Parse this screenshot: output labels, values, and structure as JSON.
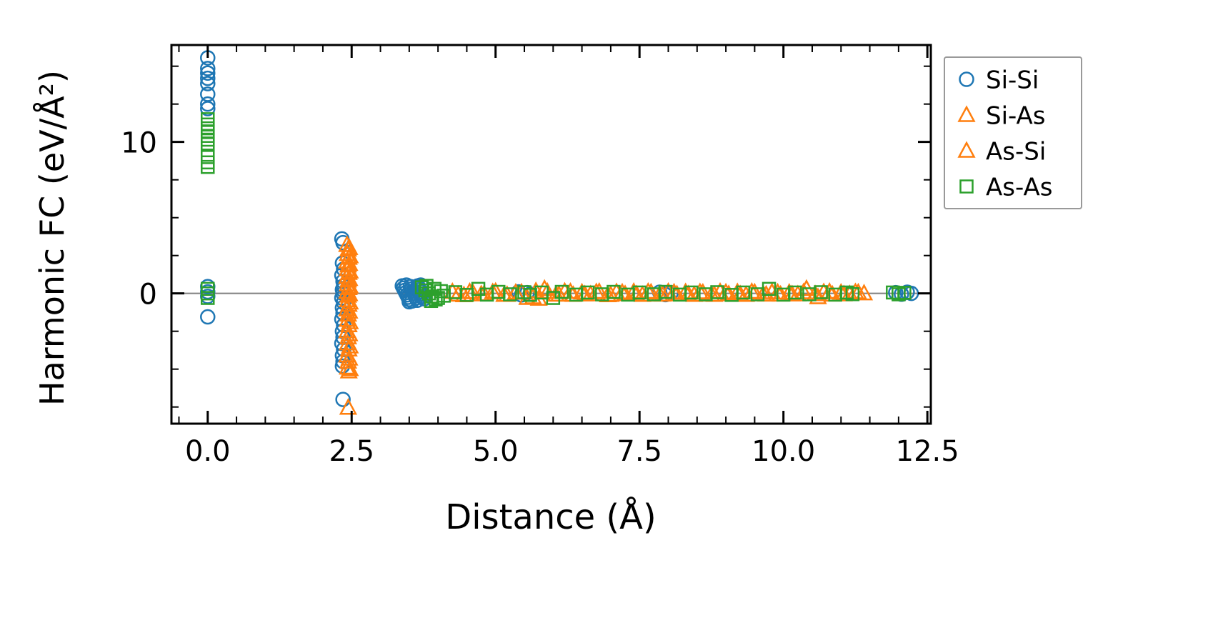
{
  "figure": {
    "background": "#ffffff"
  },
  "chart_data": {
    "type": "scatter",
    "title": "",
    "xlabel": "Distance (Å)",
    "ylabel": "Harmonic FC (eV/Å²)",
    "xlim": [
      -0.63,
      12.56
    ],
    "ylim": [
      -8.6,
      16.4
    ],
    "grid": false,
    "x_ticks": {
      "values": [
        0.0,
        2.5,
        5.0,
        7.5,
        10.0,
        12.5
      ],
      "labels": [
        "0.0",
        "2.5",
        "5.0",
        "7.5",
        "10.0",
        "12.5"
      ],
      "minor_step": 0.5
    },
    "y_ticks": {
      "values": [
        0,
        10
      ],
      "labels": [
        "0",
        "10"
      ],
      "minor_step": 2.5
    },
    "zero_line": {
      "y": 0,
      "color": "#808080"
    },
    "legend": {
      "position": "outside-upper-right",
      "border_color": "#999999"
    },
    "series": [
      {
        "name": "Si-Si",
        "marker": "circle",
        "color": "#1f77b4",
        "points": [
          [
            0,
            15.55
          ],
          [
            0,
            14.85
          ],
          [
            0,
            14.55
          ],
          [
            0,
            14.2
          ],
          [
            0,
            13.85
          ],
          [
            0,
            13.15
          ],
          [
            0,
            12.5
          ],
          [
            0,
            12.2
          ],
          [
            0,
            0.45
          ],
          [
            0,
            0.1
          ],
          [
            0,
            -0.2
          ],
          [
            0,
            -1.55
          ],
          [
            2.33,
            3.6
          ],
          [
            2.35,
            3.35
          ],
          [
            2.34,
            2.0
          ],
          [
            2.36,
            1.6
          ],
          [
            2.33,
            1.2
          ],
          [
            2.35,
            0.8
          ],
          [
            2.36,
            0.5
          ],
          [
            2.34,
            0.25
          ],
          [
            2.35,
            0.0
          ],
          [
            2.33,
            -0.3
          ],
          [
            2.36,
            -0.6
          ],
          [
            2.34,
            -0.95
          ],
          [
            2.35,
            -1.3
          ],
          [
            2.33,
            -1.7
          ],
          [
            2.36,
            -2.1
          ],
          [
            2.34,
            -2.5
          ],
          [
            2.35,
            -2.9
          ],
          [
            2.33,
            -3.3
          ],
          [
            2.36,
            -3.7
          ],
          [
            2.34,
            -4.1
          ],
          [
            2.35,
            -4.5
          ],
          [
            2.34,
            -4.8
          ],
          [
            2.35,
            -7.0
          ],
          [
            3.38,
            0.5
          ],
          [
            3.4,
            0.35
          ],
          [
            3.42,
            0.2
          ],
          [
            3.44,
            0.05
          ],
          [
            3.46,
            -0.1
          ],
          [
            3.48,
            -0.25
          ],
          [
            3.5,
            -0.4
          ],
          [
            3.52,
            0.45
          ],
          [
            3.54,
            0.3
          ],
          [
            3.56,
            0.15
          ],
          [
            3.58,
            0.0
          ],
          [
            3.6,
            -0.15
          ],
          [
            3.62,
            -0.3
          ],
          [
            3.64,
            -0.45
          ],
          [
            3.66,
            0.4
          ],
          [
            3.68,
            0.25
          ],
          [
            3.7,
            0.1
          ],
          [
            3.72,
            -0.05
          ],
          [
            3.74,
            -0.2
          ],
          [
            3.76,
            -0.35
          ],
          [
            3.45,
            0.55
          ],
          [
            3.55,
            -0.5
          ],
          [
            3.65,
            0.5
          ],
          [
            3.5,
            -0.55
          ],
          [
            3.7,
            0.55
          ],
          [
            5.4,
            0.1
          ],
          [
            5.45,
            -0.1
          ],
          [
            5.55,
            0.05
          ],
          [
            5.6,
            -0.05
          ],
          [
            7.85,
            0.08
          ],
          [
            7.95,
            -0.08
          ],
          [
            8.05,
            0.05
          ],
          [
            11.95,
            0.05
          ],
          [
            12.05,
            -0.05
          ],
          [
            12.15,
            0.08
          ],
          [
            12.22,
            0.0
          ]
        ]
      },
      {
        "name": "Si-As",
        "marker": "triangle",
        "color": "#ff7f0e",
        "points": [
          [
            2.42,
            3.2
          ],
          [
            2.44,
            2.9
          ],
          [
            2.43,
            2.6
          ],
          [
            2.45,
            2.35
          ],
          [
            2.42,
            2.1
          ],
          [
            2.44,
            1.85
          ],
          [
            2.43,
            1.6
          ],
          [
            2.45,
            1.35
          ],
          [
            2.42,
            1.1
          ],
          [
            2.44,
            0.85
          ],
          [
            2.43,
            0.6
          ],
          [
            2.45,
            0.35
          ],
          [
            2.42,
            0.1
          ],
          [
            2.44,
            -0.15
          ],
          [
            2.43,
            -0.45
          ],
          [
            2.45,
            -0.75
          ],
          [
            2.42,
            -1.05
          ],
          [
            2.44,
            -1.4
          ],
          [
            2.43,
            -1.75
          ],
          [
            2.45,
            -2.1
          ],
          [
            2.42,
            -2.5
          ],
          [
            2.44,
            -2.9
          ],
          [
            2.43,
            -3.3
          ],
          [
            2.45,
            -3.7
          ],
          [
            2.42,
            -4.1
          ],
          [
            2.44,
            -4.5
          ],
          [
            2.43,
            -4.9
          ],
          [
            2.45,
            -5.15
          ],
          [
            2.44,
            -7.55
          ],
          [
            4.25,
            0.1
          ],
          [
            4.45,
            -0.12
          ],
          [
            4.6,
            0.08
          ],
          [
            4.8,
            -0.05
          ],
          [
            5.0,
            0.12
          ],
          [
            5.15,
            -0.1
          ],
          [
            5.35,
            0.05
          ],
          [
            5.55,
            -0.3
          ],
          [
            5.7,
            0.15
          ],
          [
            5.75,
            -0.35
          ],
          [
            5.9,
            0.1
          ],
          [
            6.05,
            -0.08
          ],
          [
            6.2,
            0.12
          ],
          [
            6.35,
            -0.1
          ],
          [
            6.5,
            0.06
          ],
          [
            6.65,
            -0.06
          ],
          [
            6.8,
            0.1
          ],
          [
            6.95,
            -0.12
          ],
          [
            7.1,
            0.08
          ],
          [
            7.25,
            -0.05
          ],
          [
            7.4,
            0.1
          ],
          [
            7.55,
            -0.1
          ],
          [
            7.7,
            0.06
          ],
          [
            7.85,
            -0.08
          ],
          [
            8.0,
            0.1
          ],
          [
            8.15,
            -0.06
          ],
          [
            8.3,
            0.08
          ],
          [
            8.45,
            -0.1
          ],
          [
            8.6,
            0.05
          ],
          [
            8.75,
            -0.08
          ],
          [
            8.9,
            0.1
          ],
          [
            9.05,
            -0.05
          ],
          [
            9.2,
            0.08
          ],
          [
            9.35,
            -0.1
          ],
          [
            9.5,
            0.06
          ],
          [
            9.65,
            -0.06
          ],
          [
            9.8,
            0.08
          ],
          [
            9.95,
            -0.08
          ],
          [
            10.1,
            0.05
          ],
          [
            10.25,
            -0.06
          ],
          [
            10.4,
            0.3
          ],
          [
            10.55,
            -0.05
          ],
          [
            10.7,
            0.08
          ],
          [
            10.85,
            -0.08
          ],
          [
            11.0,
            0.05
          ],
          [
            11.15,
            -0.05
          ],
          [
            11.3,
            0.06
          ]
        ]
      },
      {
        "name": "As-Si",
        "marker": "triangle",
        "color": "#ff7f0e",
        "points": [
          [
            2.46,
            3.0
          ],
          [
            2.47,
            2.45
          ],
          [
            2.46,
            1.95
          ],
          [
            2.47,
            1.45
          ],
          [
            2.46,
            0.95
          ],
          [
            2.47,
            0.45
          ],
          [
            2.46,
            -0.05
          ],
          [
            2.47,
            -0.6
          ],
          [
            2.46,
            -1.2
          ],
          [
            2.47,
            -1.9
          ],
          [
            2.46,
            -2.7
          ],
          [
            2.47,
            -3.5
          ],
          [
            2.46,
            -4.3
          ],
          [
            2.47,
            -5.0
          ],
          [
            4.35,
            -0.08
          ],
          [
            4.55,
            0.1
          ],
          [
            4.75,
            -0.06
          ],
          [
            4.95,
            0.08
          ],
          [
            5.2,
            -0.1
          ],
          [
            5.45,
            0.06
          ],
          [
            5.65,
            -0.25
          ],
          [
            5.85,
            0.3
          ],
          [
            6.1,
            -0.08
          ],
          [
            6.3,
            0.1
          ],
          [
            6.55,
            -0.06
          ],
          [
            6.75,
            0.08
          ],
          [
            7.0,
            -0.1
          ],
          [
            7.2,
            0.06
          ],
          [
            7.45,
            -0.06
          ],
          [
            7.65,
            0.1
          ],
          [
            7.9,
            -0.08
          ],
          [
            8.1,
            0.06
          ],
          [
            8.35,
            -0.06
          ],
          [
            8.55,
            0.08
          ],
          [
            8.8,
            -0.1
          ],
          [
            9.0,
            0.06
          ],
          [
            9.25,
            -0.06
          ],
          [
            9.45,
            0.1
          ],
          [
            9.7,
            -0.08
          ],
          [
            9.9,
            0.06
          ],
          [
            10.15,
            -0.06
          ],
          [
            10.35,
            0.08
          ],
          [
            10.6,
            -0.25
          ],
          [
            10.8,
            0.1
          ],
          [
            11.05,
            -0.06
          ],
          [
            11.25,
            0.08
          ],
          [
            11.4,
            0.0
          ]
        ]
      },
      {
        "name": "As-As",
        "marker": "square",
        "color": "#2ca02c",
        "points": [
          [
            0,
            11.5
          ],
          [
            0,
            11.15
          ],
          [
            0,
            10.9
          ],
          [
            0,
            10.65
          ],
          [
            0,
            10.4
          ],
          [
            0,
            10.15
          ],
          [
            0,
            9.9
          ],
          [
            0,
            9.0
          ],
          [
            0,
            8.65
          ],
          [
            0,
            8.35
          ],
          [
            0,
            0.3
          ],
          [
            0,
            0.0
          ],
          [
            0,
            -0.3
          ],
          [
            3.72,
            0.4
          ],
          [
            3.78,
            0.2
          ],
          [
            3.84,
            0.0
          ],
          [
            3.9,
            -0.2
          ],
          [
            3.96,
            -0.4
          ],
          [
            3.8,
            0.5
          ],
          [
            3.88,
            -0.5
          ],
          [
            3.94,
            0.3
          ],
          [
            4.0,
            -0.3
          ],
          [
            4.05,
            0.15
          ],
          [
            4.1,
            -0.15
          ],
          [
            4.3,
            0.08
          ],
          [
            4.5,
            -0.1
          ],
          [
            4.7,
            0.3
          ],
          [
            4.85,
            -0.08
          ],
          [
            5.05,
            0.1
          ],
          [
            5.25,
            -0.06
          ],
          [
            5.5,
            0.08
          ],
          [
            5.6,
            -0.1
          ],
          [
            5.8,
            0.06
          ],
          [
            6.0,
            -0.3
          ],
          [
            6.15,
            0.1
          ],
          [
            6.4,
            -0.08
          ],
          [
            6.6,
            0.06
          ],
          [
            6.85,
            -0.06
          ],
          [
            7.05,
            0.1
          ],
          [
            7.3,
            -0.08
          ],
          [
            7.5,
            0.06
          ],
          [
            7.75,
            -0.06
          ],
          [
            7.95,
            0.1
          ],
          [
            8.2,
            -0.08
          ],
          [
            8.4,
            0.06
          ],
          [
            8.65,
            -0.06
          ],
          [
            8.85,
            0.08
          ],
          [
            9.1,
            -0.1
          ],
          [
            9.3,
            0.06
          ],
          [
            9.55,
            -0.06
          ],
          [
            9.75,
            0.3
          ],
          [
            10.0,
            -0.08
          ],
          [
            10.2,
            0.06
          ],
          [
            10.45,
            -0.06
          ],
          [
            10.65,
            0.08
          ],
          [
            10.9,
            -0.08
          ],
          [
            11.1,
            0.06
          ],
          [
            11.2,
            -0.05
          ],
          [
            11.9,
            0.06
          ],
          [
            12.0,
            -0.06
          ],
          [
            12.1,
            0.04
          ]
        ]
      }
    ]
  }
}
